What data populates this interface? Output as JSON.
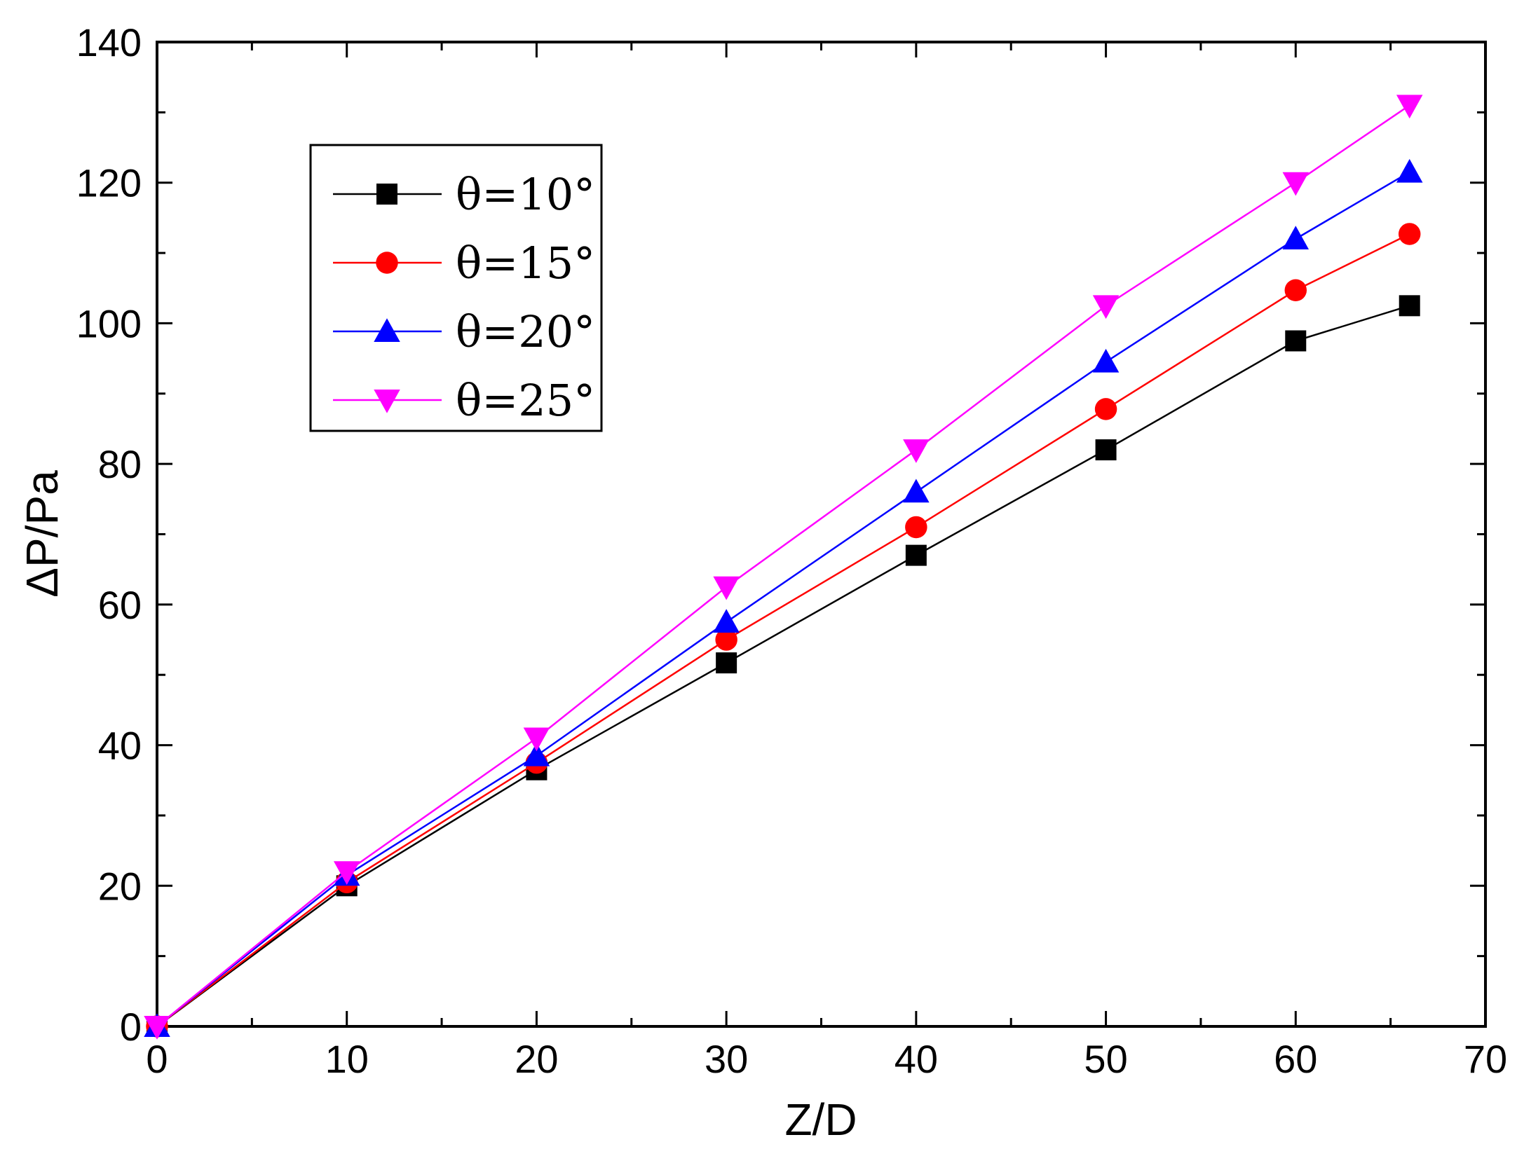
{
  "chart_data": {
    "type": "line",
    "title": "",
    "xlabel": "Z/D",
    "ylabel": "ΔP/Pa",
    "xlim": [
      0,
      70
    ],
    "ylim": [
      0,
      140
    ],
    "xticks": [
      0,
      10,
      20,
      30,
      40,
      50,
      60,
      70
    ],
    "yticks": [
      0,
      20,
      40,
      60,
      80,
      100,
      120,
      140
    ],
    "x": [
      0,
      10,
      20,
      30,
      40,
      50,
      60,
      66
    ],
    "legend_position": "top-left",
    "grid": false,
    "series": [
      {
        "name": "θ=10°",
        "marker": "square",
        "color": "#000000",
        "values": [
          0,
          20,
          36.5,
          51.7,
          67,
          82,
          97.5,
          102.5
        ]
      },
      {
        "name": "θ=15°",
        "marker": "circle",
        "color": "#ff0000",
        "values": [
          0,
          20.5,
          37.5,
          55,
          71,
          87.8,
          104.7,
          112.7
        ]
      },
      {
        "name": "θ=20°",
        "marker": "triangle-up",
        "color": "#0000ff",
        "values": [
          0,
          21.5,
          38.5,
          57.5,
          76,
          94.5,
          112,
          121.5
        ]
      },
      {
        "name": "θ=25°",
        "marker": "triangle-down",
        "color": "#ff00ff",
        "values": [
          0,
          22,
          41,
          62.5,
          82,
          102.5,
          120,
          131
        ]
      }
    ]
  }
}
